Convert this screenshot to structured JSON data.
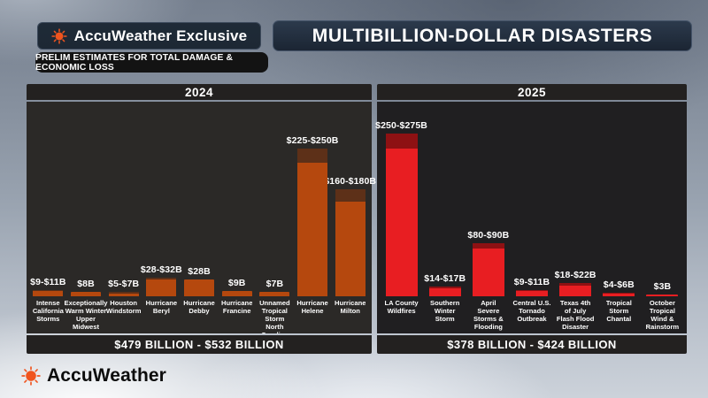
{
  "header": {
    "brand_badge": "AccuWeather Exclusive",
    "title": "MULTIBILLION-DOLLAR DISASTERS",
    "subtitle_badge": "PRELIM ESTIMATES FOR TOTAL DAMAGE & ECONOMIC LOSS"
  },
  "footer": {
    "logo_text": "AccuWeather"
  },
  "colors": {
    "accent_orange": "#f0541e",
    "orange_bar": "#b5480e",
    "orange_cap": "#5d3018",
    "red_bar": "#e81e22",
    "red_cap": "#8e1113",
    "navy_badge": "#1d2834",
    "panel_dark": "#232120"
  },
  "chart_data": [
    {
      "type": "bar",
      "title": "2024",
      "total": "$479 BILLION - $532 BILLION",
      "unit": "billions USD, preliminary total damage & economic loss",
      "bar_color": "#b5480e",
      "cap_color": "#5d3018",
      "ylim": [
        0,
        275
      ],
      "bars": [
        {
          "name": "Intense\nCalifornia\nStorms",
          "label": "$9-$11B",
          "low": 9,
          "high": 11
        },
        {
          "name": "Exceptionally\nWarm Winter\nUpper Midwest",
          "label": "$8B",
          "low": 8,
          "high": 8
        },
        {
          "name": "Houston\nWindstorm",
          "label": "$5-$7B",
          "low": 5,
          "high": 7
        },
        {
          "name": "Hurricane\nBeryl",
          "label": "$28-$32B",
          "low": 28,
          "high": 32
        },
        {
          "name": "Hurricane\nDebby",
          "label": "$28B",
          "low": 28,
          "high": 28
        },
        {
          "name": "Hurricane\nFrancine",
          "label": "$9B",
          "low": 9,
          "high": 9
        },
        {
          "name": "Unnamed\nTropical Storm\nNorth Carolina",
          "label": "$7B",
          "low": 7,
          "high": 7
        },
        {
          "name": "Hurricane\nHelene",
          "label": "$225-$250B",
          "low": 225,
          "high": 250
        },
        {
          "name": "Hurricane\nMilton",
          "label": "$160-$180B",
          "low": 160,
          "high": 180
        }
      ]
    },
    {
      "type": "bar",
      "title": "2025",
      "total": "$378 BILLION - $424 BILLION",
      "unit": "billions USD, preliminary total damage & economic loss",
      "bar_color": "#e81e22",
      "cap_color": "#8e1113",
      "ylim": [
        0,
        275
      ],
      "bars": [
        {
          "name": "LA County\nWildfires",
          "label": "$250-$275B",
          "low": 250,
          "high": 275
        },
        {
          "name": "Southern\nWinter\nStorm",
          "label": "$14-$17B",
          "low": 14,
          "high": 17
        },
        {
          "name": "April\nSevere\nStorms &\nFlooding",
          "label": "$80-$90B",
          "low": 80,
          "high": 90
        },
        {
          "name": "Central U.S.\nTornado\nOutbreak",
          "label": "$9-$11B",
          "low": 9,
          "high": 11
        },
        {
          "name": "Texas 4th\nof July\nFlash Flood\nDisaster",
          "label": "$18-$22B",
          "low": 18,
          "high": 22
        },
        {
          "name": "Tropical\nStorm\nChantal",
          "label": "$4-$6B",
          "low": 4,
          "high": 6
        },
        {
          "name": "October\nTropical\nWind &\nRainstorm",
          "label": "$3B",
          "low": 3,
          "high": 3
        }
      ]
    }
  ]
}
